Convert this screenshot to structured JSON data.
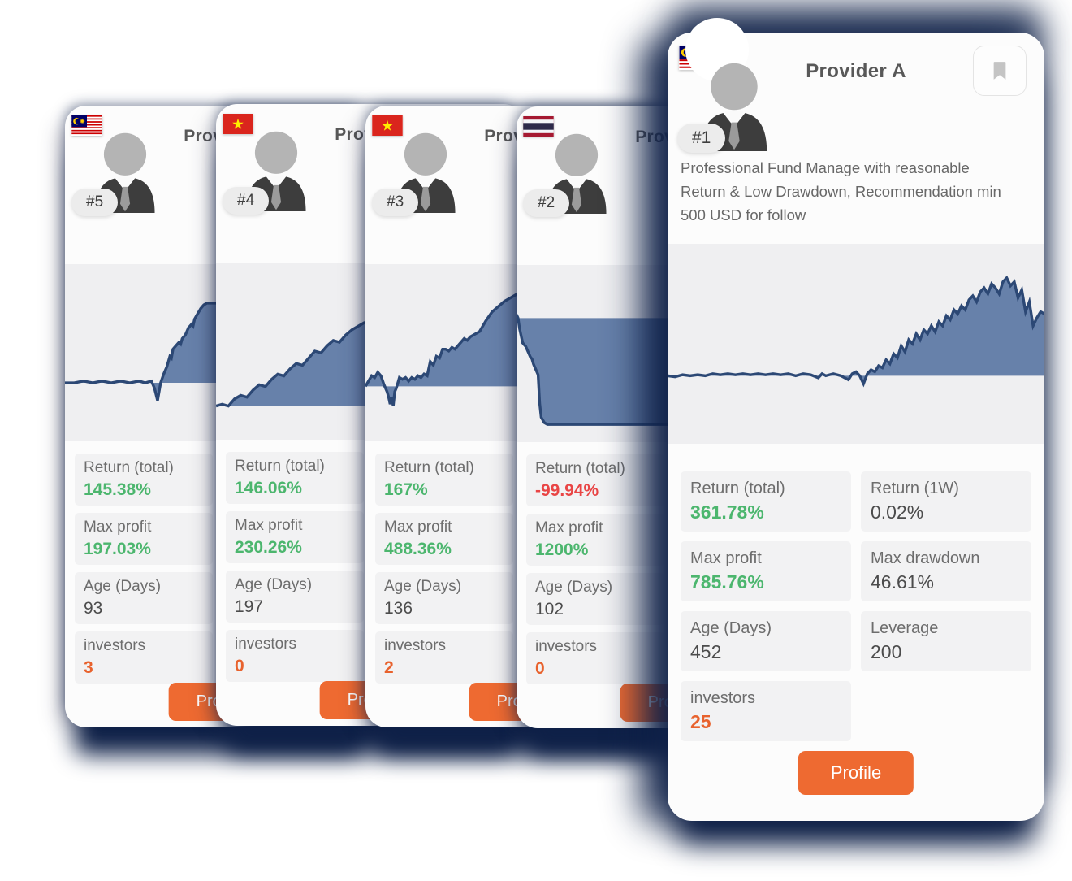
{
  "colors": {
    "green": "#4cb66e",
    "red": "#e94545",
    "orange": "#e8622d",
    "navy_shadow": "#0f2148",
    "chart_line": "#2c4875",
    "chart_fill": "#5b77a4",
    "button_orange": "#ee6a31"
  },
  "cards": [
    {
      "rank": "#5",
      "title": "Provider",
      "flag": "malaysia",
      "bookmark": false,
      "description": "",
      "stats": [
        {
          "label": "Return (total)",
          "value": "145.38%",
          "tone": "green"
        },
        {
          "label": "Max profit",
          "value": "197.03%",
          "tone": "green"
        },
        {
          "label": "Age (Days)",
          "value": "93",
          "tone": "plain"
        },
        {
          "label": "investors",
          "value": "3",
          "tone": "orange"
        }
      ],
      "button_label": "Profile",
      "chart_data": {
        "type": "area",
        "axes": false,
        "baseline": 67,
        "points": [
          [
            0,
            67
          ],
          [
            3,
            67
          ],
          [
            6,
            66
          ],
          [
            9,
            67
          ],
          [
            12,
            66
          ],
          [
            15,
            67
          ],
          [
            18,
            66
          ],
          [
            21,
            67
          ],
          [
            24,
            66
          ],
          [
            26,
            67
          ],
          [
            28,
            66
          ],
          [
            29,
            70
          ],
          [
            30,
            77
          ],
          [
            31,
            67
          ],
          [
            32,
            62
          ],
          [
            33,
            58
          ],
          [
            34,
            52
          ],
          [
            34.5,
            53
          ],
          [
            35,
            48
          ],
          [
            36,
            46
          ],
          [
            37,
            44
          ],
          [
            37.5,
            45
          ],
          [
            38,
            42
          ],
          [
            39,
            40
          ],
          [
            40,
            36
          ],
          [
            41,
            34
          ],
          [
            41.5,
            35
          ],
          [
            42,
            31
          ],
          [
            43,
            28
          ],
          [
            44,
            25
          ],
          [
            45,
            23
          ],
          [
            46,
            22
          ],
          [
            100,
            22
          ]
        ]
      }
    },
    {
      "rank": "#4",
      "title": "Provider",
      "flag": "vietnam",
      "bookmark": false,
      "description": "",
      "stats": [
        {
          "label": "Return (total)",
          "value": "146.06%",
          "tone": "green"
        },
        {
          "label": "Max profit",
          "value": "230.26%",
          "tone": "green"
        },
        {
          "label": "Age (Days)",
          "value": "197",
          "tone": "plain"
        },
        {
          "label": "investors",
          "value": "0",
          "tone": "orange"
        }
      ],
      "button_label": "Profile",
      "chart_data": {
        "type": "area",
        "axes": false,
        "baseline": 81,
        "points": [
          [
            0,
            81
          ],
          [
            2,
            80
          ],
          [
            4,
            81
          ],
          [
            6,
            77
          ],
          [
            8,
            75
          ],
          [
            10,
            76
          ],
          [
            12,
            72
          ],
          [
            14,
            69
          ],
          [
            16,
            70
          ],
          [
            18,
            66
          ],
          [
            20,
            63
          ],
          [
            22,
            64
          ],
          [
            24,
            60
          ],
          [
            26,
            57
          ],
          [
            28,
            58
          ],
          [
            30,
            54
          ],
          [
            32,
            50
          ],
          [
            34,
            51
          ],
          [
            36,
            47
          ],
          [
            38,
            44
          ],
          [
            40,
            45
          ],
          [
            42,
            41
          ],
          [
            44,
            38
          ],
          [
            46,
            36
          ],
          [
            48,
            34
          ],
          [
            50,
            33
          ],
          [
            55,
            29
          ],
          [
            60,
            26
          ],
          [
            65,
            22
          ],
          [
            70,
            19
          ],
          [
            75,
            16
          ],
          [
            80,
            14
          ],
          [
            85,
            12
          ],
          [
            90,
            10
          ],
          [
            95,
            9
          ],
          [
            100,
            8
          ]
        ]
      }
    },
    {
      "rank": "#3",
      "title": "Provider",
      "flag": "vietnam",
      "bookmark": false,
      "description": "",
      "stats": [
        {
          "label": "Return (total)",
          "value": "167%",
          "tone": "green"
        },
        {
          "label": "Max profit",
          "value": "488.36%",
          "tone": "green"
        },
        {
          "label": "Age (Days)",
          "value": "136",
          "tone": "plain"
        },
        {
          "label": "investors",
          "value": "2",
          "tone": "orange"
        }
      ],
      "button_label": "Profile",
      "chart_data": {
        "type": "area",
        "axes": false,
        "baseline": 69,
        "points": [
          [
            0,
            69
          ],
          [
            1,
            66
          ],
          [
            2,
            63
          ],
          [
            3,
            64
          ],
          [
            4,
            61
          ],
          [
            5,
            63
          ],
          [
            6,
            68
          ],
          [
            7,
            72
          ],
          [
            7.5,
            75
          ],
          [
            8,
            79
          ],
          [
            8.5,
            75
          ],
          [
            9,
            80
          ],
          [
            9.5,
            72
          ],
          [
            10,
            70
          ],
          [
            11,
            64
          ],
          [
            12,
            65
          ],
          [
            13,
            64
          ],
          [
            14,
            66
          ],
          [
            15,
            64
          ],
          [
            16,
            65
          ],
          [
            17,
            63
          ],
          [
            18,
            64
          ],
          [
            19,
            62
          ],
          [
            20,
            63
          ],
          [
            21,
            55
          ],
          [
            22,
            57
          ],
          [
            23,
            52
          ],
          [
            24,
            53
          ],
          [
            25,
            48
          ],
          [
            26,
            48
          ],
          [
            27,
            49
          ],
          [
            28,
            47
          ],
          [
            29,
            48
          ],
          [
            30,
            46
          ],
          [
            31,
            44
          ],
          [
            32,
            42
          ],
          [
            33,
            43
          ],
          [
            34,
            41
          ],
          [
            35,
            40
          ],
          [
            37,
            38
          ],
          [
            39,
            32
          ],
          [
            41,
            27
          ],
          [
            43,
            24
          ],
          [
            45,
            21
          ],
          [
            47,
            19
          ],
          [
            49,
            17
          ],
          [
            60,
            15
          ],
          [
            70,
            12
          ],
          [
            85,
            10
          ],
          [
            100,
            8
          ]
        ]
      }
    },
    {
      "rank": "#2",
      "title": "Provider",
      "flag": "thailand",
      "bookmark": false,
      "description": "",
      "stats": [
        {
          "label": "Return (total)",
          "value": "-99.94%",
          "tone": "red"
        },
        {
          "label": "Max profit",
          "value": "1200%",
          "tone": "green"
        },
        {
          "label": "Age (Days)",
          "value": "102",
          "tone": "plain"
        },
        {
          "label": "investors",
          "value": "0",
          "tone": "orange"
        }
      ],
      "button_label": "Profile",
      "chart_data": {
        "type": "area",
        "axes": false,
        "baseline": 30,
        "points": [
          [
            0,
            28
          ],
          [
            0.5,
            30
          ],
          [
            1,
            36
          ],
          [
            1.5,
            40
          ],
          [
            2,
            44
          ],
          [
            2.5,
            45
          ],
          [
            3,
            46
          ],
          [
            3.5,
            48
          ],
          [
            4,
            50
          ],
          [
            4.5,
            52
          ],
          [
            5,
            53
          ],
          [
            5.5,
            56
          ],
          [
            6,
            58
          ],
          [
            6.5,
            60
          ],
          [
            7,
            62
          ],
          [
            7.5,
            78
          ],
          [
            8,
            86
          ],
          [
            9,
            89
          ],
          [
            10,
            90
          ],
          [
            100,
            90
          ]
        ]
      }
    },
    {
      "rank": "#1",
      "title": "Provider A",
      "flag": "malaysia",
      "bookmark": true,
      "description": "Professional Fund Manage with reasonable Return & Low Drawdown, Recommendation min 500 USD for follow",
      "stats": [
        {
          "label": "Return (total)",
          "value": "361.78%",
          "tone": "green"
        },
        {
          "label": "Return (1W)",
          "value": "0.02%",
          "tone": "plain"
        },
        {
          "label": "Max profit",
          "value": "785.76%",
          "tone": "green"
        },
        {
          "label": "Max drawdown",
          "value": "46.61%",
          "tone": "plain"
        },
        {
          "label": "Age (Days)",
          "value": "452",
          "tone": "plain"
        },
        {
          "label": "Leverage",
          "value": "200",
          "tone": "plain"
        },
        {
          "label": "investors",
          "value": "25",
          "tone": "orange"
        }
      ],
      "button_label": "Profile",
      "chart_data": {
        "type": "area",
        "axes": false,
        "baseline": 66,
        "points": [
          [
            0,
            66
          ],
          [
            2,
            66.5
          ],
          [
            4,
            65.5
          ],
          [
            6,
            66
          ],
          [
            8,
            65.5
          ],
          [
            10,
            66
          ],
          [
            12,
            65
          ],
          [
            14,
            65.5
          ],
          [
            16,
            65
          ],
          [
            18,
            65.5
          ],
          [
            20,
            65
          ],
          [
            22,
            65.5
          ],
          [
            24,
            65
          ],
          [
            26,
            65.5
          ],
          [
            28,
            65
          ],
          [
            30,
            65.5
          ],
          [
            32,
            65
          ],
          [
            34,
            66
          ],
          [
            36,
            65
          ],
          [
            38,
            65.5
          ],
          [
            40,
            67
          ],
          [
            41,
            65
          ],
          [
            42,
            66
          ],
          [
            44,
            65
          ],
          [
            46,
            66
          ],
          [
            48,
            68
          ],
          [
            49,
            65
          ],
          [
            50,
            64
          ],
          [
            51,
            66
          ],
          [
            52,
            70
          ],
          [
            53,
            65
          ],
          [
            54,
            63
          ],
          [
            55,
            64
          ],
          [
            56,
            61
          ],
          [
            57,
            62
          ],
          [
            58,
            58
          ],
          [
            59,
            60
          ],
          [
            60,
            55
          ],
          [
            61,
            57
          ],
          [
            62,
            51
          ],
          [
            63,
            54
          ],
          [
            64,
            48
          ],
          [
            65,
            50
          ],
          [
            66,
            45
          ],
          [
            67,
            48
          ],
          [
            68,
            43
          ],
          [
            69,
            45
          ],
          [
            70,
            41
          ],
          [
            71,
            44
          ],
          [
            72,
            39
          ],
          [
            73,
            41
          ],
          [
            74,
            36
          ],
          [
            75,
            38
          ],
          [
            76,
            33
          ],
          [
            77,
            35
          ],
          [
            78,
            31
          ],
          [
            79,
            33
          ],
          [
            80,
            28
          ],
          [
            81,
            26
          ],
          [
            82,
            29
          ],
          [
            83,
            24
          ],
          [
            84,
            22
          ],
          [
            85,
            25
          ],
          [
            86,
            20
          ],
          [
            87,
            22
          ],
          [
            88,
            25
          ],
          [
            89,
            19
          ],
          [
            90,
            17
          ],
          [
            91,
            21
          ],
          [
            92,
            19
          ],
          [
            93,
            27
          ],
          [
            94,
            23
          ],
          [
            95,
            34
          ],
          [
            96,
            29
          ],
          [
            97,
            41
          ],
          [
            98,
            37
          ],
          [
            99,
            34
          ],
          [
            100,
            35
          ]
        ]
      }
    }
  ]
}
